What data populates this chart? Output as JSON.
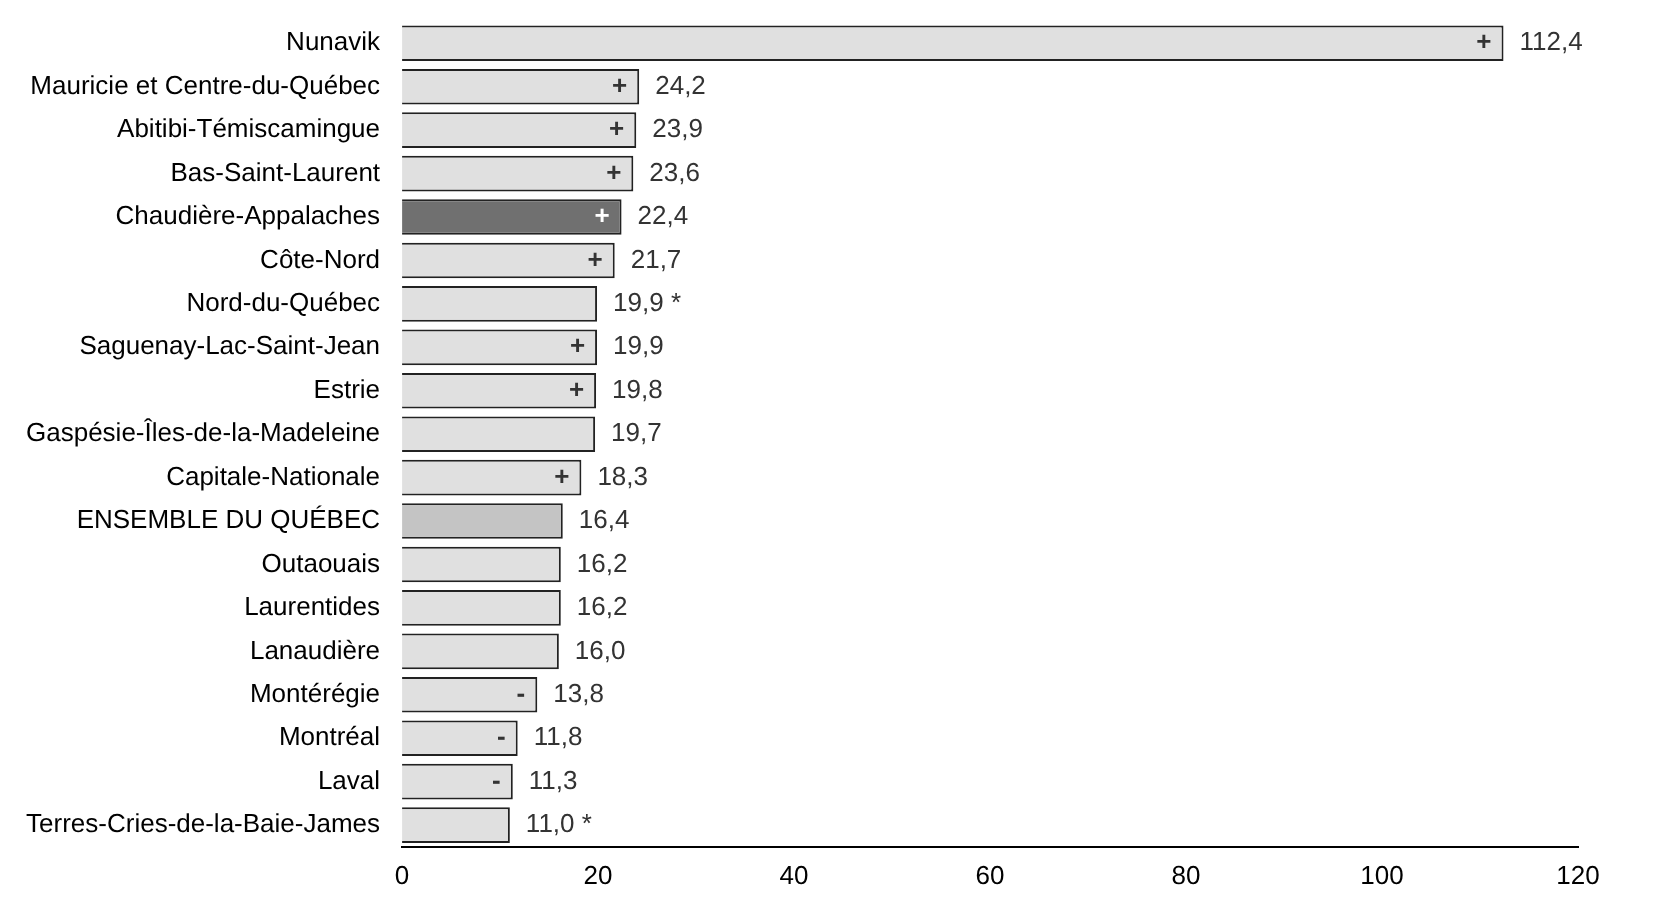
{
  "chart_data": {
    "type": "bar",
    "orientation": "horizontal",
    "categories": [
      "Nunavik",
      "Mauricie et Centre-du-Québec",
      "Abitibi-Témiscamingue",
      "Bas-Saint-Laurent",
      "Chaudière-Appalaches",
      "Côte-Nord",
      "Nord-du-Québec",
      "Saguenay-Lac-Saint-Jean",
      "Estrie",
      "Gaspésie-Îles-de-la-Madeleine",
      "Capitale-Nationale",
      "ENSEMBLE DU QUÉBEC",
      "Outaouais",
      "Laurentides",
      "Lanaudière",
      "Montérégie",
      "Montréal",
      "Laval",
      "Terres-Cries-de-la-Baie-James"
    ],
    "values": [
      112.4,
      24.2,
      23.9,
      23.6,
      22.4,
      21.7,
      19.9,
      19.9,
      19.8,
      19.7,
      18.3,
      16.4,
      16.2,
      16.2,
      16.0,
      13.8,
      11.8,
      11.3,
      11.0
    ],
    "value_labels": [
      "112,4",
      "24,2",
      "23,9",
      "23,6",
      "22,4",
      "21,7",
      "19,9 *",
      "19,9",
      "19,8",
      "19,7",
      "18,3",
      "16,4",
      "16,2",
      "16,2",
      "16,0",
      "13,8",
      "11,8",
      "11,3",
      "11,0 *"
    ],
    "colors": [
      "#e0e0e0",
      "#e0e0e0",
      "#e0e0e0",
      "#e0e0e0",
      "#707070",
      "#e0e0e0",
      "#e0e0e0",
      "#e0e0e0",
      "#e0e0e0",
      "#e0e0e0",
      "#e0e0e0",
      "#c4c4c4",
      "#e0e0e0",
      "#e0e0e0",
      "#e0e0e0",
      "#e0e0e0",
      "#e0e0e0",
      "#e0e0e0",
      "#e0e0e0"
    ],
    "annotations": [
      {
        "text": "+",
        "x": 112.4,
        "y": "Nunavik"
      },
      {
        "text": "+",
        "x": 24.2,
        "y": "Mauricie et Centre-du-Québec"
      },
      {
        "text": "+",
        "x": 23.9,
        "y": "Abitibi-Témiscamingue"
      },
      {
        "text": "+",
        "x": 23.6,
        "y": "Bas-Saint-Laurent"
      },
      {
        "text": "+",
        "x": 22.4,
        "y": "Chaudière-Appalaches"
      },
      {
        "text": "+",
        "x": 21.7,
        "y": "Côte-Nord"
      },
      {
        "text": "+",
        "x": 19.9,
        "y": "Saguenay-Lac-Saint-Jean"
      },
      {
        "text": "+",
        "x": 19.8,
        "y": "Estrie"
      },
      {
        "text": "+",
        "x": 18.3,
        "y": "Capitale-Nationale"
      },
      {
        "text": "-",
        "x": 13.8,
        "y": "Montérégie"
      },
      {
        "text": "-",
        "x": 11.8,
        "y": "Montréal"
      },
      {
        "text": "-",
        "x": 11.3,
        "y": "Laval"
      }
    ],
    "xlim": [
      0,
      120
    ],
    "xticks": [
      0,
      20,
      40,
      60,
      80,
      100,
      120
    ],
    "grid": false,
    "legend": false
  }
}
